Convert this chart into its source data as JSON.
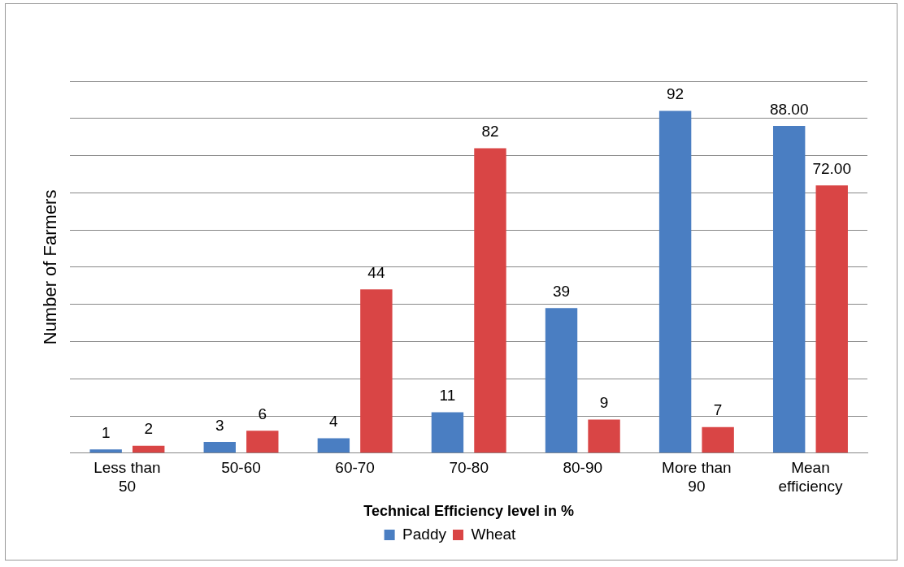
{
  "chart_data": {
    "type": "bar",
    "xlabel": "Technical Efficiency level in %",
    "ylabel": "Number of Farmers",
    "categories": [
      "Less than 50",
      "50-60",
      "60-70",
      "70-80",
      "80-90",
      "More than 90",
      "Mean efficiency"
    ],
    "series": [
      {
        "name": "Paddy",
        "color": "#4a7ec2",
        "values": [
          1,
          3,
          4,
          11,
          39,
          92,
          88
        ],
        "value_labels": [
          "1",
          "3",
          "4",
          "11",
          "39",
          "92",
          "88.00"
        ]
      },
      {
        "name": "Wheat",
        "color": "#d94545",
        "values": [
          2,
          6,
          44,
          82,
          9,
          7,
          72
        ],
        "value_labels": [
          "2",
          "6",
          "44",
          "82",
          "9",
          "7",
          "72.00"
        ]
      }
    ],
    "ylim": [
      0,
      100
    ],
    "yticks": [
      {
        "value": 0,
        "label": null
      },
      {
        "value": 10,
        "label": null
      },
      {
        "value": 20,
        "label": null
      },
      {
        "value": 30,
        "label": null
      },
      {
        "value": 40,
        "label": null
      },
      {
        "value": 50,
        "label": null
      },
      {
        "value": 60,
        "label": null
      },
      {
        "value": 70,
        "label": null
      },
      {
        "value": 80,
        "label": null
      },
      {
        "value": 90,
        "label": null
      },
      {
        "value": 100,
        "label": null
      }
    ],
    "grid": "y",
    "legend": "bottom",
    "tick_labels": "x"
  }
}
